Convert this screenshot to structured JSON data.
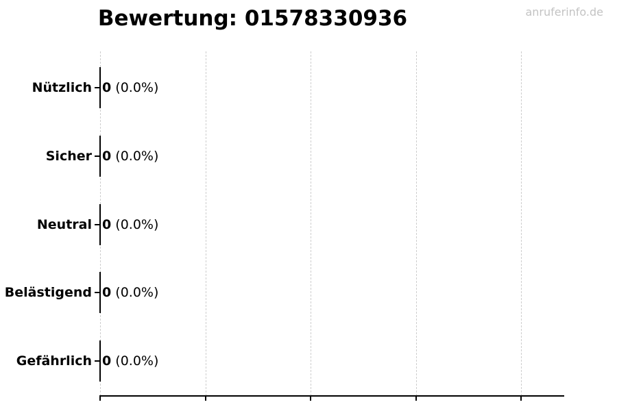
{
  "title": {
    "text": "Bewertung: 01578330936"
  },
  "watermark": {
    "text": "anruferinfo.de"
  },
  "chart_data": {
    "type": "bar",
    "orientation": "horizontal",
    "title": "Bewertung: 01578330936",
    "categories": [
      "Nützlich",
      "Sicher",
      "Neutral",
      "Belästigend",
      "Gefährlich"
    ],
    "values": [
      0,
      0,
      0,
      0,
      0
    ],
    "value_labels": [
      {
        "count": "0",
        "percent": "(0.0%)"
      },
      {
        "count": "0",
        "percent": "(0.0%)"
      },
      {
        "count": "0",
        "percent": "(0.0%)"
      },
      {
        "count": "0",
        "percent": "(0.0%)"
      },
      {
        "count": "0",
        "percent": "(0.0%)"
      }
    ],
    "xlabel": "",
    "ylabel": "",
    "x_tick_labels": [],
    "grid": {
      "orientation": "vertical",
      "style": "dashed",
      "count": 5
    },
    "legend": null
  },
  "colors": {
    "text": "#000000",
    "axis": "#000000",
    "grid": "#cdcdcd",
    "watermark": "#c3c3c3",
    "background": "#ffffff"
  }
}
